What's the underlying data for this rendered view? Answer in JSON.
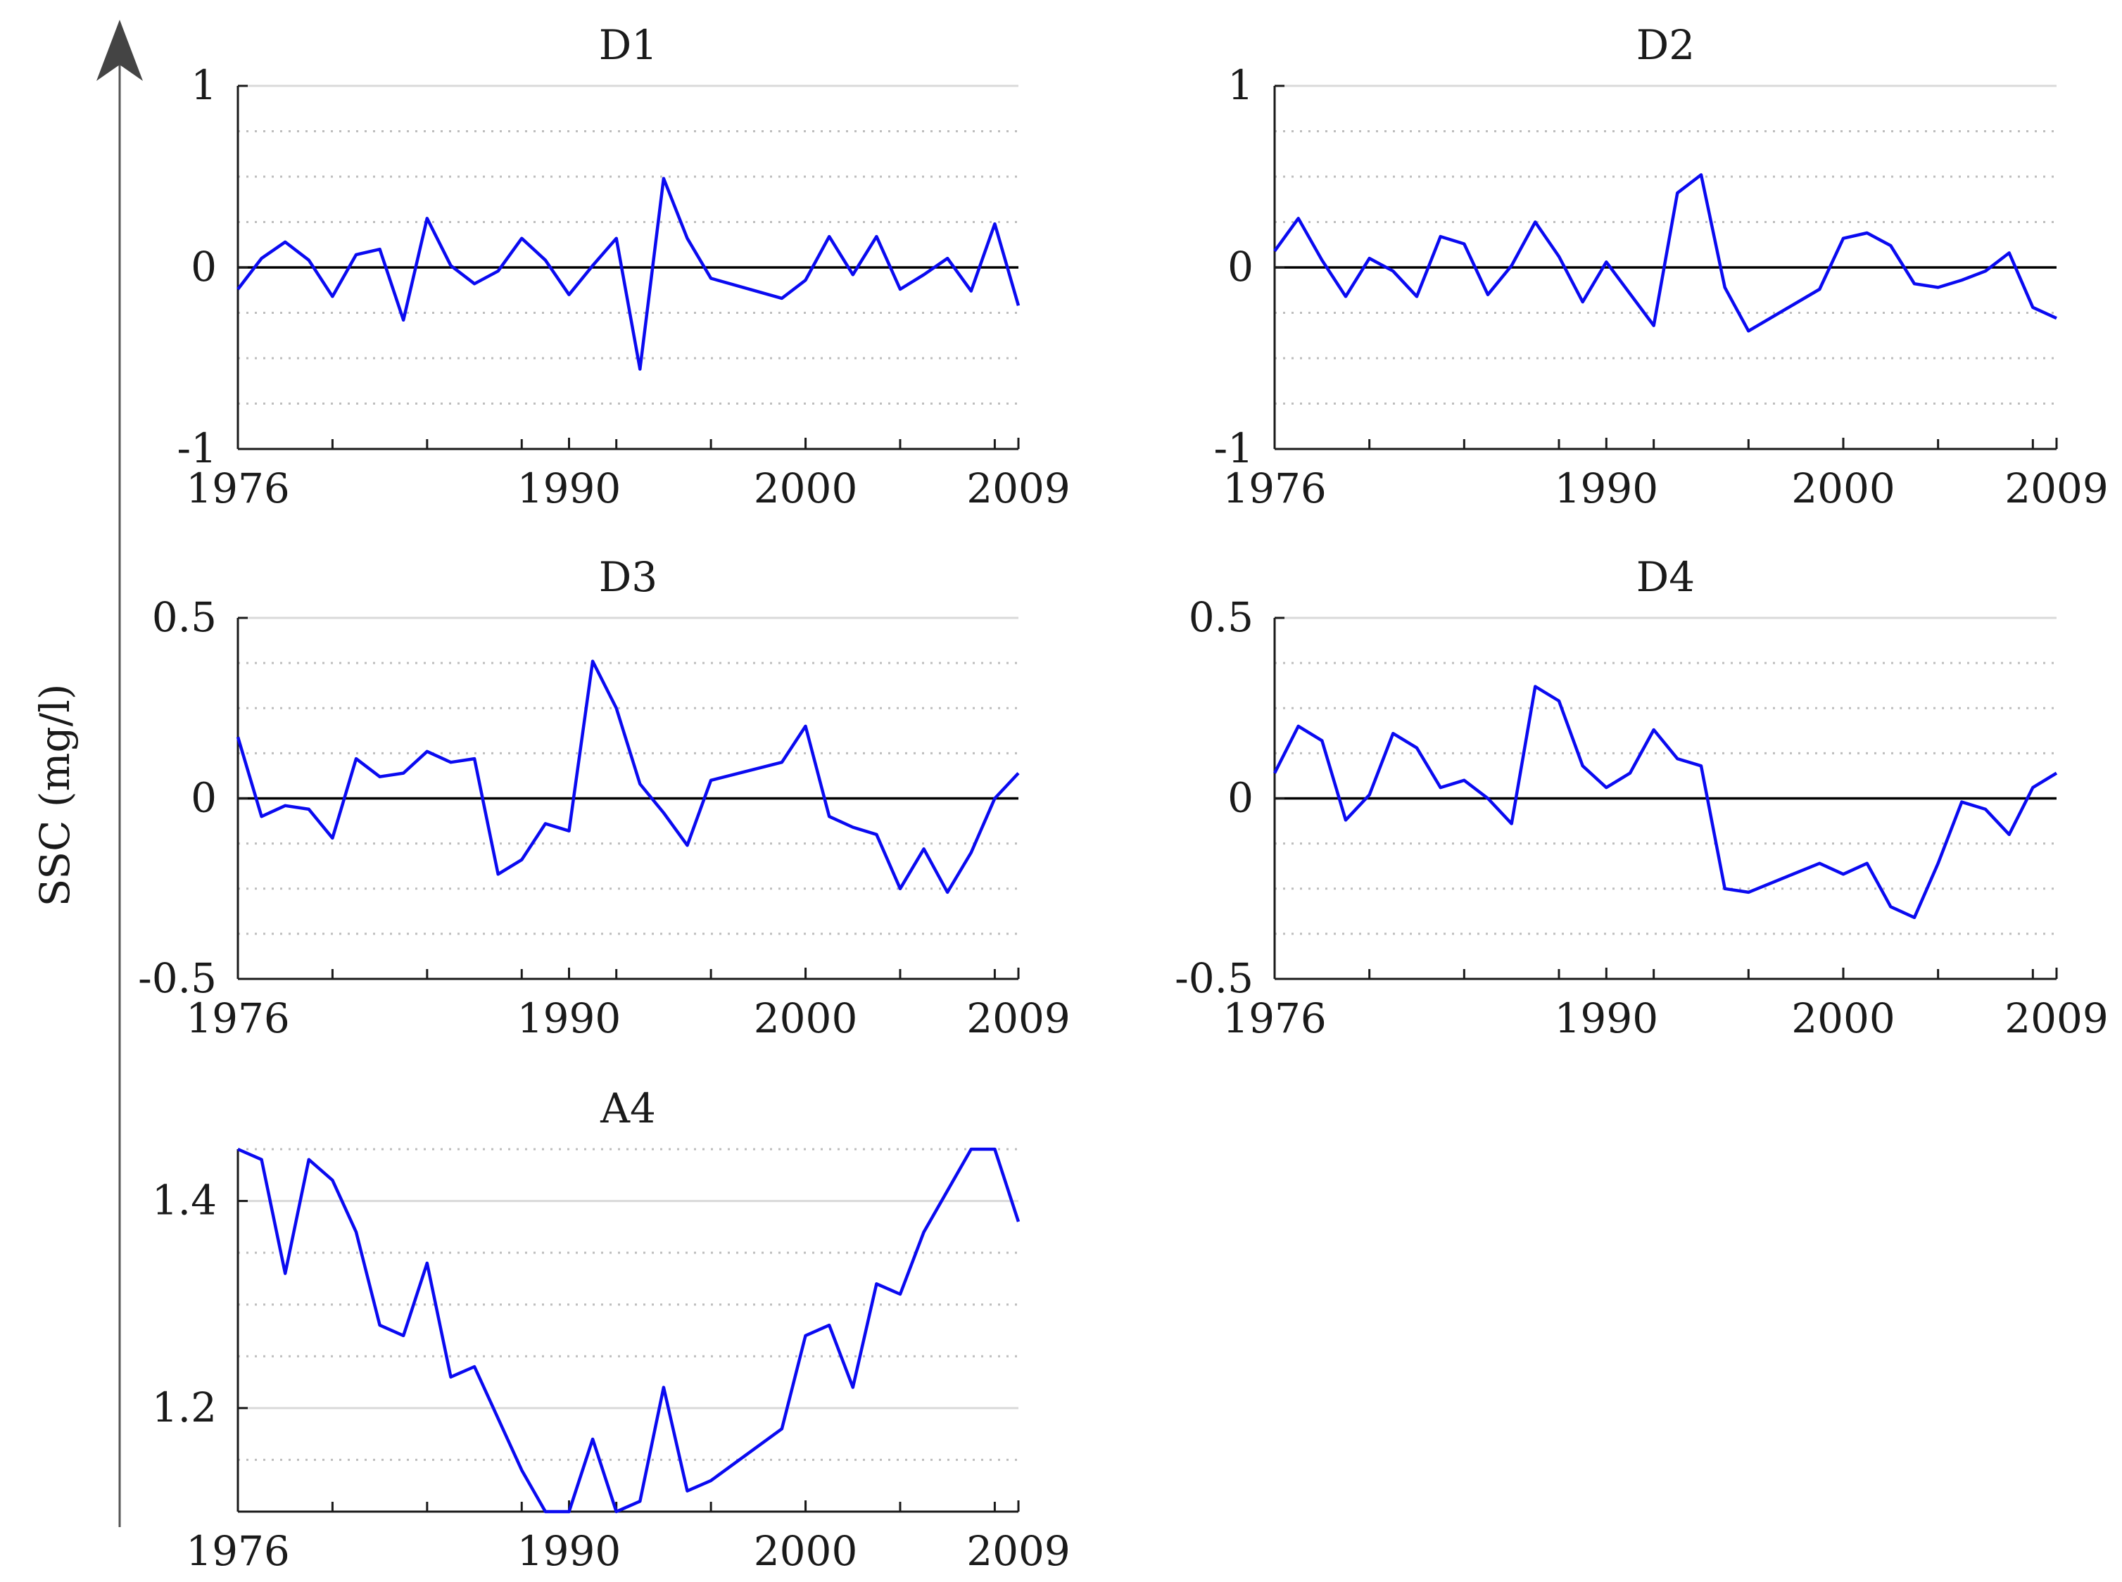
{
  "figure": {
    "ylabel": "SSC (mg/l)"
  },
  "colors": {
    "series": "#0a0af0",
    "axis": "#1a1a1a",
    "grid_major": "#d9d9d9",
    "grid_minor": "#bdbdbd",
    "zero": "#000000"
  },
  "chart_data": [
    {
      "type": "line",
      "title": "D1",
      "xlabel": "",
      "ylabel": "SSC (mg/l)",
      "xlim": [
        1976,
        2009
      ],
      "ylim": [
        -1,
        1
      ],
      "xticks": [
        1976,
        1990,
        2000,
        2009
      ],
      "xtick_labels": [
        "1976",
        "1990",
        "2000",
        "2009"
      ],
      "yticks": [
        -1,
        0,
        1
      ],
      "ytick_labels": [
        "-1",
        "0",
        "1"
      ],
      "grid_major": [
        1
      ],
      "grid_minor": [
        0.75,
        0.5,
        0.25,
        -0.25,
        -0.5,
        -0.75
      ],
      "zero_line": true,
      "series": [
        {
          "name": "D1",
          "x": [
            1976,
            1977,
            1978,
            1979,
            1980,
            1981,
            1982,
            1983,
            1984,
            1985,
            1986,
            1987,
            1988,
            1989,
            1990,
            1991,
            1992,
            1993,
            1994,
            1995,
            1996,
            1999,
            2000,
            2001,
            2002,
            2003,
            2004,
            2005,
            2006,
            2007,
            2008,
            2009
          ],
          "y": [
            -0.12,
            0.05,
            0.14,
            0.04,
            -0.16,
            0.07,
            0.1,
            -0.29,
            0.27,
            0.01,
            -0.09,
            -0.02,
            0.16,
            0.04,
            -0.15,
            0.01,
            0.16,
            -0.56,
            0.49,
            0.16,
            -0.06,
            -0.17,
            -0.07,
            0.17,
            -0.04,
            0.17,
            -0.12,
            -0.04,
            0.05,
            -0.13,
            0.24,
            -0.21
          ]
        }
      ]
    },
    {
      "type": "line",
      "title": "D2",
      "xlabel": "",
      "ylabel": "",
      "xlim": [
        1976,
        2009
      ],
      "ylim": [
        -1,
        1
      ],
      "xticks": [
        1976,
        1990,
        2000,
        2009
      ],
      "xtick_labels": [
        "1976",
        "1990",
        "2000",
        "2009"
      ],
      "yticks": [
        -1,
        0,
        1
      ],
      "ytick_labels": [
        "-1",
        "0",
        "1"
      ],
      "grid_major": [
        1
      ],
      "grid_minor": [
        0.75,
        0.5,
        0.25,
        -0.25,
        -0.5,
        -0.75
      ],
      "zero_line": true,
      "series": [
        {
          "name": "D2",
          "x": [
            1976,
            1977,
            1978,
            1979,
            1980,
            1981,
            1982,
            1983,
            1984,
            1985,
            1986,
            1987,
            1988,
            1989,
            1990,
            1992,
            1993,
            1994,
            1995,
            1996,
            1999,
            2000,
            2001,
            2002,
            2003,
            2004,
            2005,
            2006,
            2007,
            2008,
            2009
          ],
          "y": [
            0.09,
            0.27,
            0.04,
            -0.16,
            0.05,
            -0.02,
            -0.16,
            0.17,
            0.13,
            -0.15,
            0.01,
            0.25,
            0.06,
            -0.19,
            0.03,
            -0.32,
            0.41,
            0.51,
            -0.11,
            -0.35,
            -0.12,
            0.16,
            0.19,
            0.12,
            -0.09,
            -0.11,
            -0.07,
            -0.02,
            0.08,
            -0.22,
            -0.28
          ]
        }
      ]
    },
    {
      "type": "line",
      "title": "D3",
      "xlabel": "",
      "ylabel": "",
      "xlim": [
        1976,
        2009
      ],
      "ylim": [
        -0.5,
        0.5
      ],
      "xticks": [
        1976,
        1990,
        2000,
        2009
      ],
      "xtick_labels": [
        "1976",
        "1990",
        "2000",
        "2009"
      ],
      "yticks": [
        -0.5,
        0,
        0.5
      ],
      "ytick_labels": [
        "-0.5",
        "0",
        "0.5"
      ],
      "grid_major": [
        0.5
      ],
      "grid_minor": [
        0.375,
        0.25,
        0.125,
        -0.125,
        -0.25,
        -0.375
      ],
      "zero_line": true,
      "series": [
        {
          "name": "D3",
          "x": [
            1976,
            1977,
            1978,
            1979,
            1980,
            1981,
            1982,
            1983,
            1984,
            1985,
            1986,
            1987,
            1988,
            1989,
            1990,
            1991,
            1992,
            1993,
            1994,
            1995,
            1996,
            1999,
            2000,
            2001,
            2002,
            2003,
            2004,
            2005,
            2006,
            2007,
            2008,
            2009
          ],
          "y": [
            0.17,
            -0.05,
            -0.02,
            -0.03,
            -0.11,
            0.11,
            0.06,
            0.07,
            0.13,
            0.1,
            0.11,
            -0.21,
            -0.17,
            -0.07,
            -0.09,
            0.38,
            0.25,
            0.04,
            -0.04,
            -0.13,
            0.05,
            0.1,
            0.2,
            -0.05,
            -0.08,
            -0.1,
            -0.25,
            -0.14,
            -0.26,
            -0.15,
            0.0,
            0.07
          ]
        }
      ]
    },
    {
      "type": "line",
      "title": "D4",
      "xlabel": "",
      "ylabel": "",
      "xlim": [
        1976,
        2009
      ],
      "ylim": [
        -0.5,
        0.5
      ],
      "xticks": [
        1976,
        1990,
        2000,
        2009
      ],
      "xtick_labels": [
        "1976",
        "1990",
        "2000",
        "2009"
      ],
      "yticks": [
        -0.5,
        0,
        0.5
      ],
      "ytick_labels": [
        "-0.5",
        "0",
        "0.5"
      ],
      "grid_major": [
        0.5
      ],
      "grid_minor": [
        0.375,
        0.25,
        0.125,
        -0.125,
        -0.25,
        -0.375
      ],
      "zero_line": true,
      "series": [
        {
          "name": "D4",
          "x": [
            1976,
            1977,
            1978,
            1979,
            1980,
            1981,
            1982,
            1983,
            1984,
            1985,
            1986,
            1987,
            1988,
            1989,
            1990,
            1991,
            1992,
            1993,
            1994,
            1995,
            1996,
            1999,
            2000,
            2001,
            2002,
            2003,
            2004,
            2005,
            2006,
            2007,
            2008,
            2009
          ],
          "y": [
            0.07,
            0.2,
            0.16,
            -0.06,
            0.01,
            0.18,
            0.14,
            0.03,
            0.05,
            0.0,
            -0.07,
            0.31,
            0.27,
            0.09,
            0.03,
            0.07,
            0.19,
            0.11,
            0.09,
            -0.25,
            -0.26,
            -0.18,
            -0.21,
            -0.18,
            -0.3,
            -0.33,
            -0.18,
            -0.01,
            -0.03,
            -0.1,
            0.03,
            0.07
          ]
        }
      ]
    },
    {
      "type": "line",
      "title": "A4",
      "xlabel": "",
      "ylabel": "",
      "xlim": [
        1976,
        2009
      ],
      "ylim": [
        1.1,
        1.45
      ],
      "xticks": [
        1976,
        1990,
        2000,
        2009
      ],
      "xtick_labels": [
        "1976",
        "1990",
        "2000",
        "2009"
      ],
      "yticks": [
        1.2,
        1.4
      ],
      "ytick_labels": [
        "1.2",
        "1.4"
      ],
      "grid_major": [
        1.2,
        1.4
      ],
      "grid_minor": [
        1.15,
        1.25,
        1.3,
        1.35,
        1.45
      ],
      "zero_line": false,
      "series": [
        {
          "name": "A4",
          "x": [
            1976,
            1977,
            1978,
            1979,
            1980,
            1981,
            1982,
            1983,
            1984,
            1985,
            1986,
            1987,
            1988,
            1989,
            1990,
            1991,
            1992,
            1993,
            1994,
            1995,
            1996,
            1999,
            2000,
            2001,
            2002,
            2003,
            2004,
            2005,
            2006,
            2007,
            2008,
            2009
          ],
          "y": [
            1.45,
            1.44,
            1.33,
            1.44,
            1.42,
            1.37,
            1.28,
            1.27,
            1.34,
            1.23,
            1.24,
            1.19,
            1.14,
            1.1,
            1.1,
            1.17,
            1.1,
            1.11,
            1.22,
            1.12,
            1.13,
            1.18,
            1.27,
            1.28,
            1.22,
            1.32,
            1.31,
            1.37,
            1.41,
            1.45,
            1.45,
            1.38
          ]
        }
      ]
    }
  ]
}
